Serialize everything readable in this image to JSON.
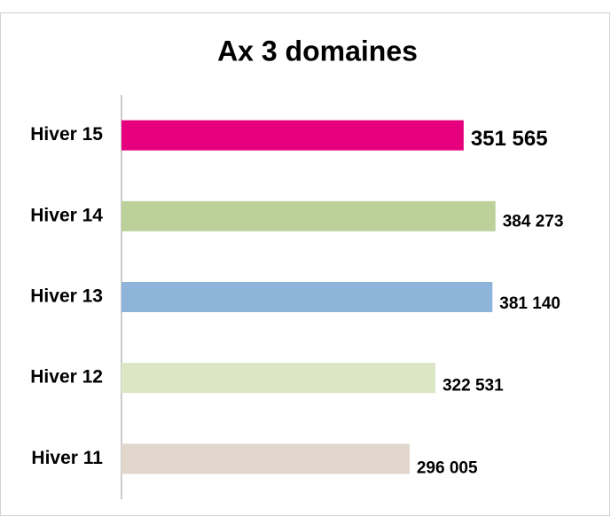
{
  "chart_data": {
    "type": "bar",
    "orientation": "horizontal",
    "title": "Ax 3 domaines",
    "categories": [
      "Hiver 15",
      "Hiver 14",
      "Hiver 13",
      "Hiver 12",
      "Hiver 11"
    ],
    "values": [
      351565,
      384273,
      381140,
      322531,
      296005
    ],
    "value_labels": [
      "351 565",
      "384 273",
      "381 140",
      "322 531",
      "296 005"
    ],
    "colors": [
      "#e6007e",
      "#bcd09a",
      "#8eb4d9",
      "#dce6c4",
      "#e0d6cb"
    ],
    "xlim": [
      0,
      400000
    ]
  }
}
